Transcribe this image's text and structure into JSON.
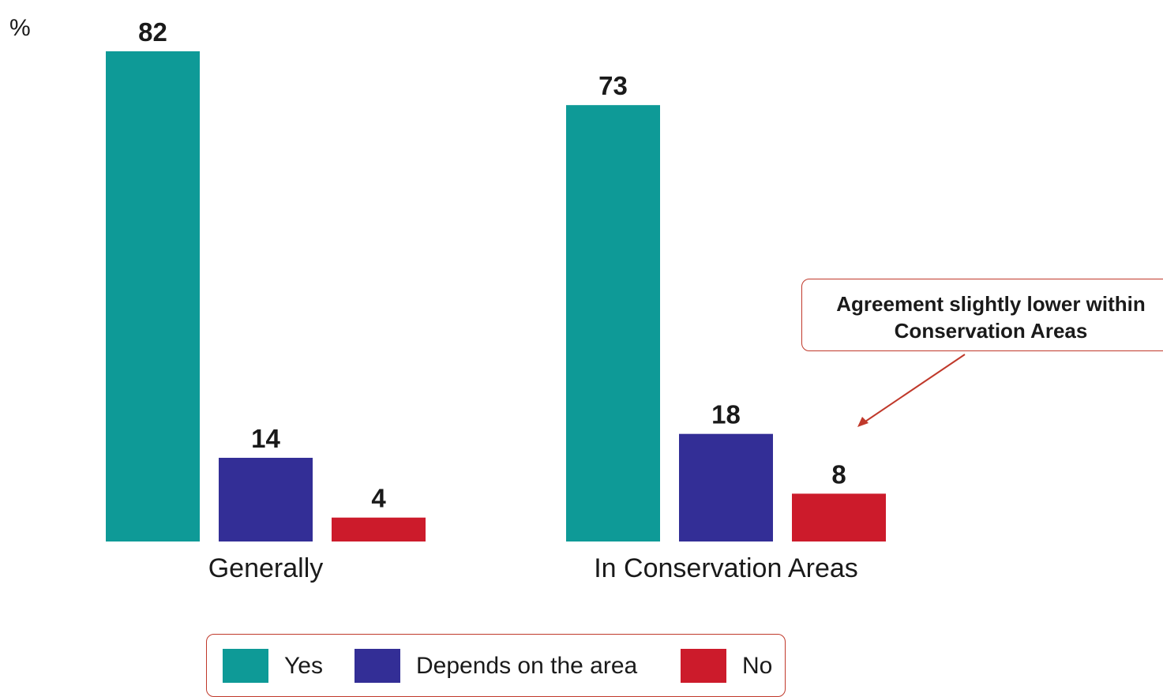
{
  "chart_data": {
    "type": "bar",
    "unit_label": "%",
    "categories": [
      "Generally",
      "In Conservation Areas"
    ],
    "series": [
      {
        "name": "Yes",
        "color": "#0e9a97",
        "values": [
          82,
          73
        ]
      },
      {
        "name": "Depends on the area",
        "color": "#332e96",
        "values": [
          14,
          18
        ]
      },
      {
        "name": "No",
        "color": "#cc1b2b",
        "values": [
          4,
          8
        ]
      }
    ],
    "ylim": [
      0,
      82
    ],
    "grid": false,
    "legend": "bottom",
    "annotation": {
      "text": "Agreement slightly lower within\nConservation Areas",
      "points_to": {
        "category": "In Conservation Areas",
        "series": "No"
      }
    }
  }
}
